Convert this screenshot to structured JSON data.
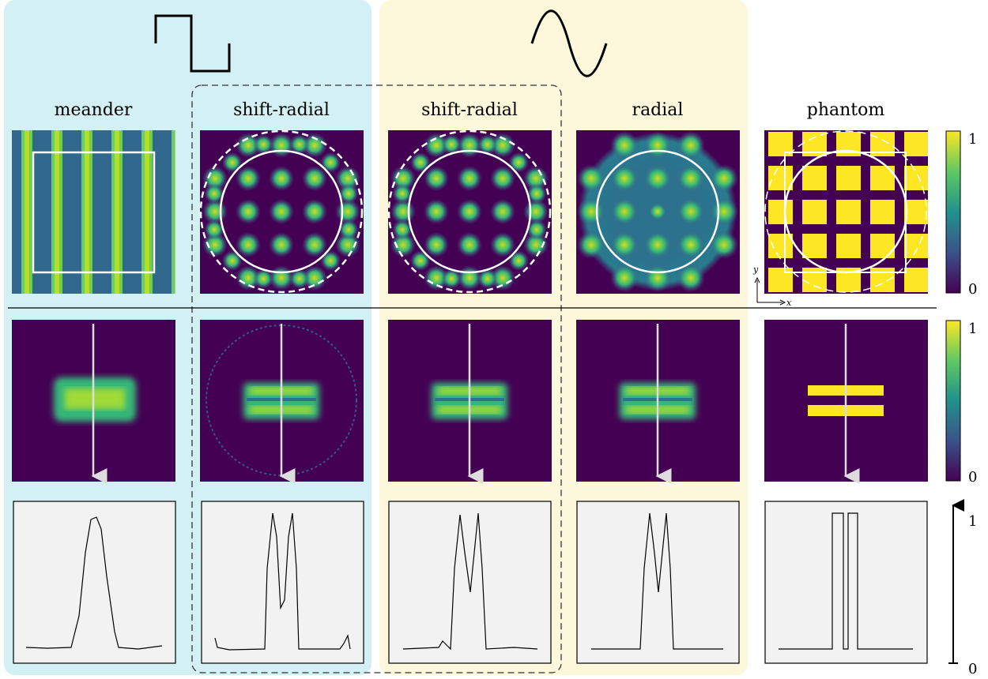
{
  "columns": [
    {
      "title": "meander"
    },
    {
      "title": "shift-radial"
    },
    {
      "title": "shift-radial"
    },
    {
      "title": "radial"
    },
    {
      "title": "phantom"
    }
  ],
  "colorbars": [
    {
      "max": "1",
      "min": "0"
    },
    {
      "max": "1",
      "min": "0"
    },
    {
      "max": "1",
      "min": "0"
    }
  ],
  "axes": {
    "y": "y",
    "x": "x"
  }
}
